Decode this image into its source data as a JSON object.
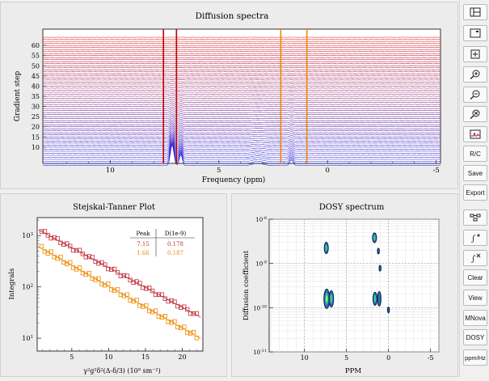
{
  "diffusion": {
    "title": "Diffusion spectra",
    "xlabel": "Frequency (ppm)",
    "ylabel": "Gradient step",
    "xticks": [
      "10",
      "5",
      "0",
      "-5"
    ],
    "yticks": [
      "10",
      "15",
      "20",
      "25",
      "30",
      "35",
      "40",
      "45",
      "50",
      "55",
      "60"
    ],
    "marker_lines": [
      {
        "ppm": 7.55,
        "color": "#c00000"
      },
      {
        "ppm": 6.95,
        "color": "#c00000"
      },
      {
        "ppm": 2.15,
        "color": "#ee8800"
      },
      {
        "ppm": 0.95,
        "color": "#ee8800"
      }
    ]
  },
  "stejskal": {
    "title": "Stejskal-Tanner Plot",
    "ylabel": "Integrals",
    "xlabel": "γ²g²δ²(Δ-δ/3) (10⁹ sm⁻²)",
    "xticks": [
      "5",
      "10",
      "15",
      "20"
    ],
    "yticks": [
      {
        "base": "10",
        "exp": "3"
      },
      {
        "base": "10",
        "exp": "2"
      },
      {
        "base": "10",
        "exp": "1"
      }
    ],
    "table": {
      "col_peak": "Peak",
      "col_d": "D(1e-9)",
      "rows": [
        {
          "peak": "7.15",
          "d": "0.178",
          "color": "#c0303a"
        },
        {
          "peak": "1.66",
          "d": "0.187",
          "color": "#ee8800"
        }
      ]
    }
  },
  "dosy": {
    "title": "DOSY spectrum",
    "ylabel": "Diffusion coefficient",
    "xlabel": "PPM",
    "xticks": [
      "10",
      "5",
      "0",
      "-5"
    ],
    "yticks": [
      {
        "base": "10",
        "exp": "-8"
      },
      {
        "base": "10",
        "exp": "-9"
      },
      {
        "base": "10",
        "exp": "-10"
      },
      {
        "base": "10",
        "exp": "-11"
      }
    ]
  },
  "toolbar": {
    "buttons": [
      {
        "name": "layout-button",
        "icon": "layout-icon"
      },
      {
        "name": "window-button",
        "icon": "window-icon"
      },
      {
        "name": "zoom-box-button",
        "icon": "zoom-box-icon"
      },
      {
        "name": "zoom-in-button",
        "icon": "zoom-in-icon"
      },
      {
        "name": "zoom-out-button",
        "icon": "zoom-out-icon"
      },
      {
        "name": "zoom-reset-button",
        "icon": "zoom-reset-icon"
      },
      {
        "name": "spectrum-view-button",
        "icon": "spectrum-icon"
      }
    ],
    "rc": "R/C",
    "save": "Save",
    "export": "Export",
    "mid_buttons": [
      {
        "name": "peak-pick-button",
        "icon": "peak-pick-icon"
      },
      {
        "name": "integral-add-button",
        "icon": "integral-add-icon"
      },
      {
        "name": "integral-remove-button",
        "icon": "integral-remove-icon"
      }
    ],
    "clear": "Clear",
    "view": "View",
    "mnova": "MNova",
    "dosy": "DOSY",
    "ppmhz": "ppm/Hz"
  },
  "colors": {
    "spectrum_top": "#e02020",
    "spectrum_bottom": "#2020e0",
    "points_red": "#c0303a",
    "points_orange": "#ee8800"
  }
}
